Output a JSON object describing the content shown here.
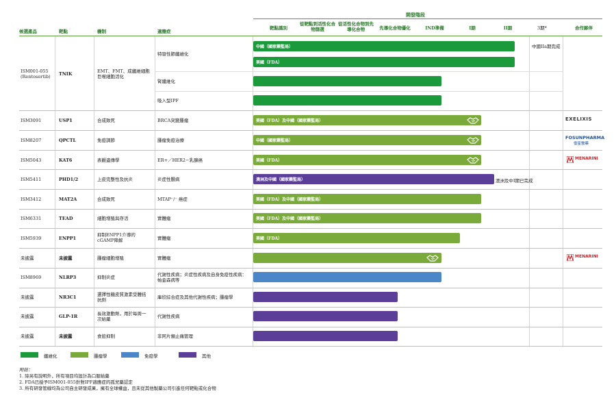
{
  "phase_group_title": "開發階段",
  "headers": {
    "candidate": "候選產品",
    "target": "靶點",
    "mechanism": "機制",
    "indication": "適應症",
    "phases": [
      "靶點識別",
      "從靶點到活性化合物篩選",
      "從活性化合物到先導化合物",
      "先導化合物優化",
      "IND準備",
      "I期",
      "II期",
      "3期*"
    ],
    "partner": "合作夥伴"
  },
  "rows": [
    {
      "candidate": "ISM001-055 (Rentosertib)",
      "target": "TNIK",
      "mechanism": "EMT、FMT、成纖維細胞巨噬細胞活化"
    },
    {
      "candidate": "ISM3091",
      "target": "USP1",
      "mechanism": "合成致死",
      "indication": "BRCA突變腫瘤",
      "bar": "美國（FDA）及中國（國家藥監局）",
      "partner": "EXELIXIS"
    },
    {
      "candidate": "ISM8207",
      "target": "QPCTL",
      "mechanism": "免疫調節",
      "indication": "腫瘤免疫治療",
      "bar": "中國（國家藥監局）",
      "partner": "FOSUNPHARMA",
      "partner_sub": "復星醫藥"
    },
    {
      "candidate": "ISM5043",
      "target": "KAT6",
      "mechanism": "表觀遺傳學",
      "indication": "ER+／HER2−乳腺癌",
      "bar": "美國（FDA）",
      "partner": "MENARINI"
    },
    {
      "candidate": "ISM5411",
      "target": "PHD1/2",
      "mechanism": "上皮完整性及抗炎",
      "indication": "炎症性腸病",
      "bar": "澳洲及中國（國家藥監局）",
      "note": "澳洲及中I期已完成"
    },
    {
      "candidate": "ISM3412",
      "target": "MAT2A",
      "mechanism": "合成致死",
      "indication": "MTAP⁻/⁻ 癌症",
      "bar": "美國（FDA）及中國（國家藥監局）"
    },
    {
      "candidate": "ISM6331",
      "target": "TEAD",
      "mechanism": "細胞增殖與存活",
      "indication": "實體瘤",
      "bar": "美國（FDA）及中國（國家藥監局）"
    },
    {
      "candidate": "ISM5939",
      "target": "ENPP1",
      "mechanism": "抑制ENPP1介導的cGAMP降解",
      "indication": "實體瘤",
      "bar": "美國（FDA）"
    },
    {
      "candidate": "未披露",
      "target": "未披露",
      "mechanism": "腫瘤細胞增殖",
      "indication": "實體瘤",
      "partner": "MENARINI"
    },
    {
      "candidate": "ISM8969",
      "target": "NLRP3",
      "mechanism": "抑制炎症",
      "indication": "代謝性疾病；炎症性疾病及自身免疫性疾病：帕金森病等"
    },
    {
      "candidate": "未披露",
      "target": "NR3C1",
      "mechanism": "選擇性糖皮質激素受體拮抗劑",
      "indication": "庫欣綜合症及其他代謝性疾病；腫瘤學"
    },
    {
      "candidate": "未披露",
      "target": "GLP-1R",
      "mechanism": "長效激動劑，用於每周一次給藥",
      "indication": "代謝性疾病"
    },
    {
      "candidate": "未披露",
      "target": "未披露",
      "mechanism": "食慾抑制",
      "indication": "非阿片類止痛管理"
    }
  ],
  "tnik_subrows": [
    {
      "indication": "特發性肺纖維化",
      "bars": [
        "中國（國家藥監局）",
        "美國（FDA）"
      ],
      "note": "中國IIa期完成"
    },
    {
      "indication": "腎纖維化"
    },
    {
      "indication": "吸入型IPF"
    }
  ],
  "legend": [
    {
      "label": "纖維化",
      "color": "#1a9a3a"
    },
    {
      "label": "腫瘤學",
      "color": "#7aab3a"
    },
    {
      "label": "免疫學",
      "color": "#4a86c8"
    },
    {
      "label": "其他",
      "color": "#5b3e98"
    }
  ],
  "footnotes": {
    "title": "附註：",
    "lines": [
      "1. 除另有說明外，所有項目均設計為口服給藥",
      "2. FDA已授予ISM001-055針對IPF適應症的孤兒藥認定",
      "3. 所有研發管線均為公司自主研發成果，擁有全球權益，且未從其他製藥公司引進任何靶點或化合物"
    ]
  }
}
